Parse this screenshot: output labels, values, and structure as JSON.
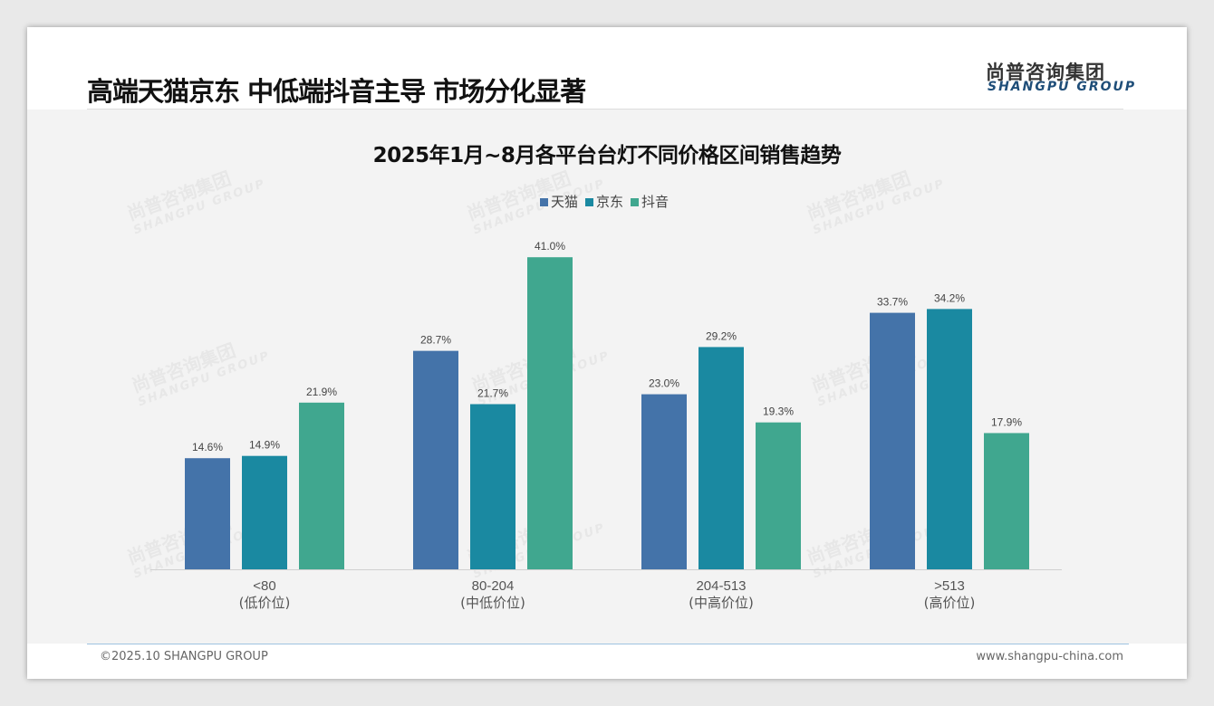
{
  "header": {
    "title": "高端天猫京东 中低端抖音主导 市场分化显著",
    "logo_cn": "尚普咨询集团",
    "logo_en": "SHANGPU GROUP"
  },
  "footer": {
    "left": "©2025.10 SHANGPU GROUP",
    "right": "www.shangpu-china.com"
  },
  "watermark": {
    "cn": "尚普咨询集团",
    "en": "SHANGPU GROUP"
  },
  "chart_data": {
    "type": "bar",
    "title": "2025年1月~8月各平台台灯不同价格区间销售趋势",
    "categories": [
      "<80",
      "80-204",
      "204-513",
      ">513"
    ],
    "category_sublabels": [
      "(低价位)",
      "(中低价位)",
      "(中高价位)",
      "(高价位)"
    ],
    "series": [
      {
        "name": "天猫",
        "color": "#4473a9",
        "values": [
          14.6,
          28.7,
          23.0,
          33.7
        ]
      },
      {
        "name": "京东",
        "color": "#1a89a1",
        "values": [
          14.9,
          21.7,
          29.2,
          34.2
        ]
      },
      {
        "name": "抖音",
        "color": "#40a78f",
        "values": [
          21.9,
          41.0,
          19.3,
          17.9
        ]
      }
    ],
    "unit": "%",
    "ylim": [
      0,
      41
    ],
    "legend_position": "top-center",
    "grid": false
  }
}
